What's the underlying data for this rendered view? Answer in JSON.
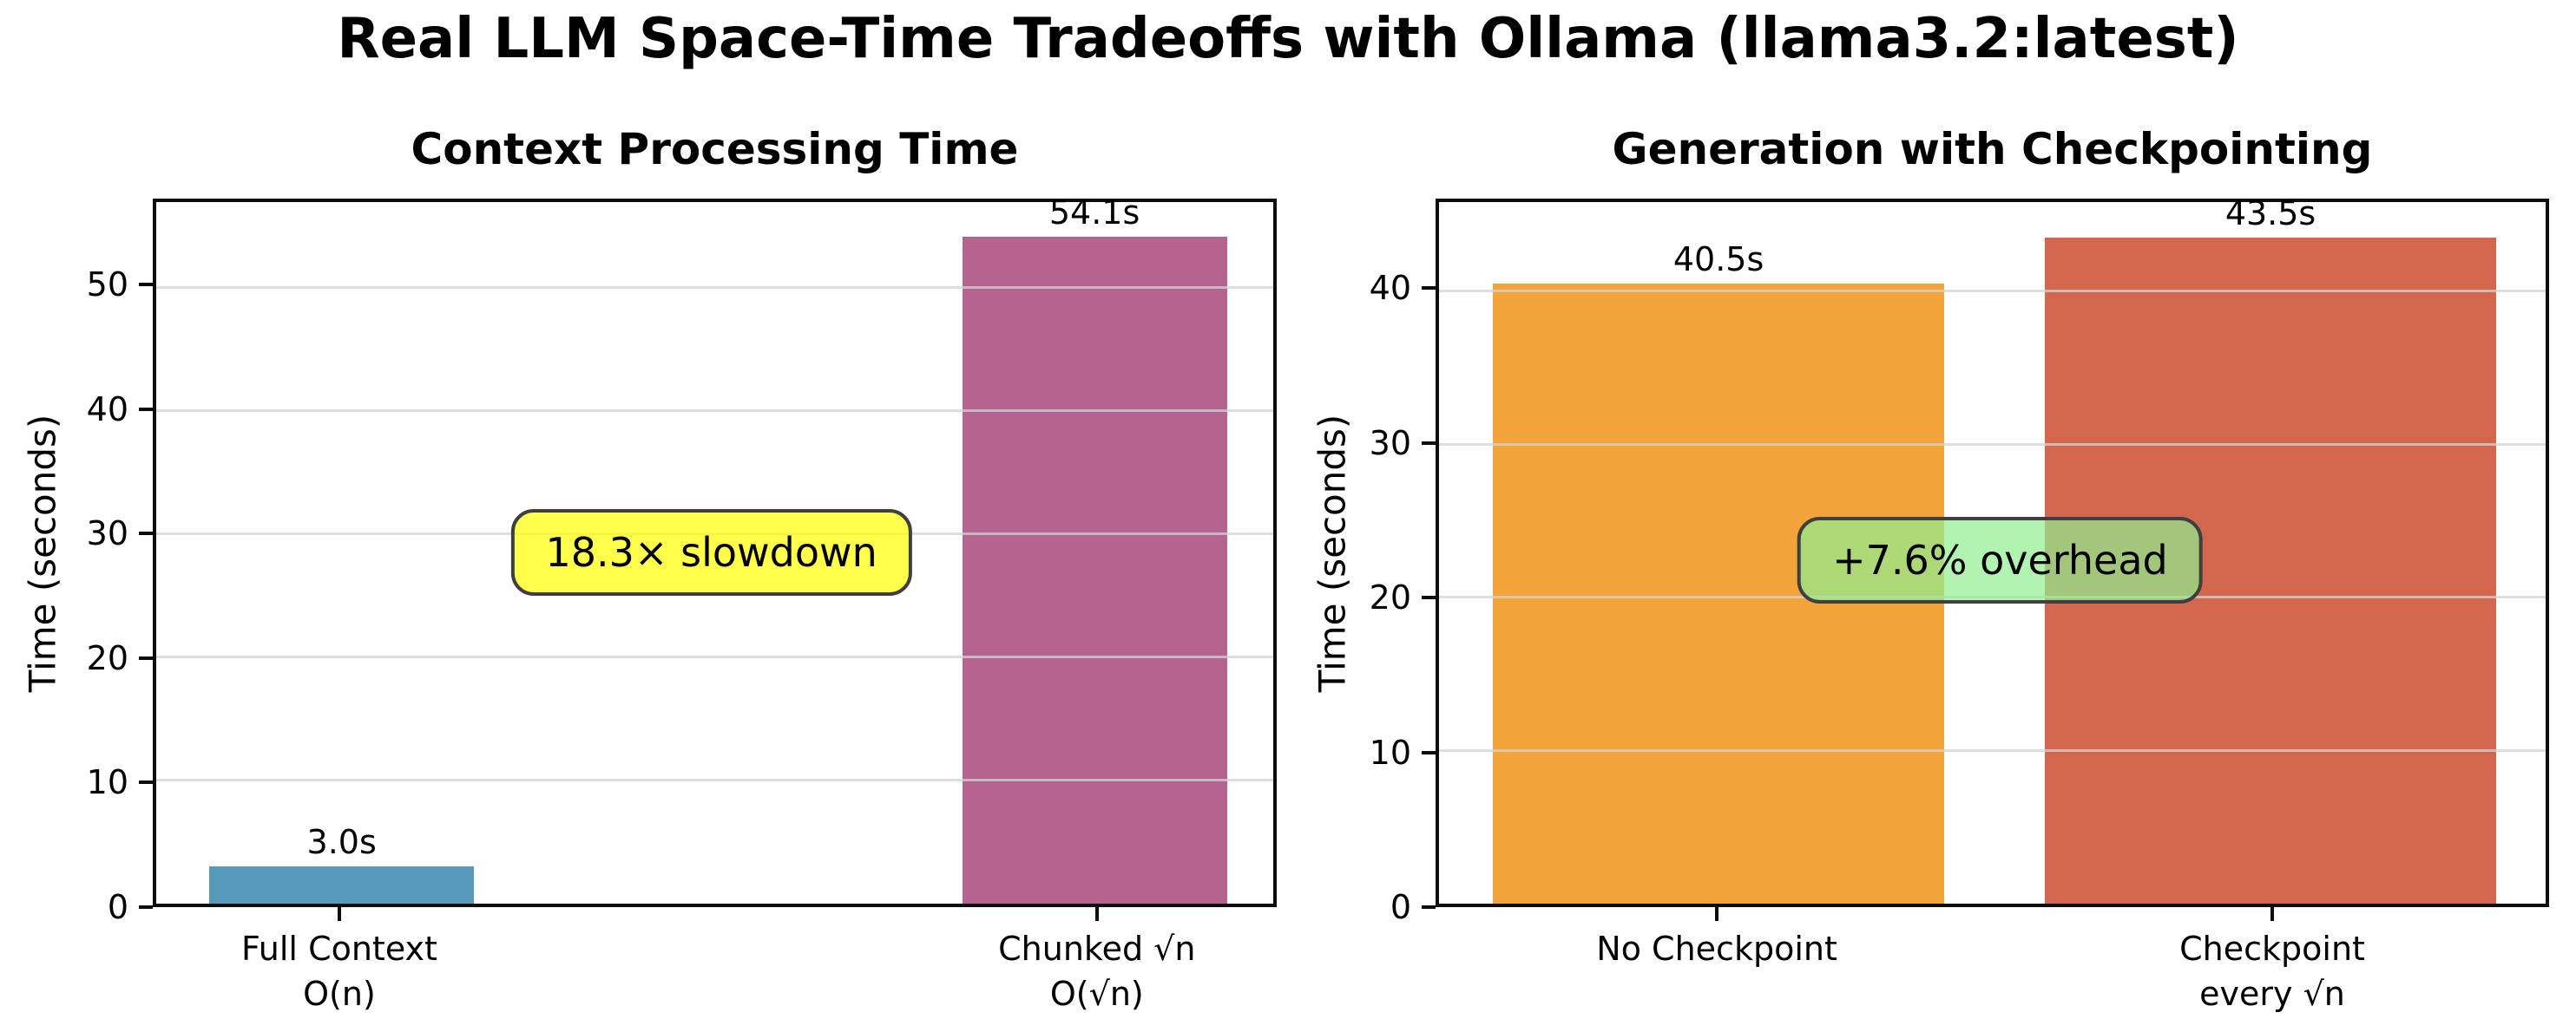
{
  "figure": {
    "title": "Real LLM Space-Time Tradeoffs with Ollama (llama3.2:latest)",
    "background": "#ffffff"
  },
  "chart_data": [
    {
      "type": "bar",
      "title": "Context Processing Time",
      "ylabel": "Time (seconds)",
      "categories": [
        [
          "Full Context",
          "O(n)"
        ],
        [
          "Chunked √n",
          "O(√n)"
        ]
      ],
      "values": [
        3.0,
        54.1
      ],
      "bar_labels": [
        "3.0s",
        "54.1s"
      ],
      "bar_colors": [
        "#5799b8",
        "#b5638f"
      ],
      "yticks": [
        0,
        10,
        20,
        30,
        40,
        50
      ],
      "ylim": [
        0,
        56.9
      ],
      "grid": true,
      "annotation": {
        "text": "18.3× slowdown",
        "fill": "#ffff00",
        "fill_alpha": 0.7,
        "border": "#3f3f3f"
      }
    },
    {
      "type": "bar",
      "title": "Generation with Checkpointing",
      "ylabel": "Time (seconds)",
      "categories": [
        [
          "No Checkpoint"
        ],
        [
          "Checkpoint",
          "every √n"
        ]
      ],
      "values": [
        40.5,
        43.5
      ],
      "bar_labels": [
        "40.5s",
        "43.5s"
      ],
      "bar_colors": [
        "#f2a33a",
        "#d2674d"
      ],
      "yticks": [
        0,
        10,
        20,
        30,
        40
      ],
      "ylim": [
        0,
        45.8
      ],
      "grid": true,
      "annotation": {
        "text": "+7.6% overhead",
        "fill": "#90ee90",
        "fill_alpha": 0.7,
        "border": "#3f3f3f"
      }
    }
  ]
}
